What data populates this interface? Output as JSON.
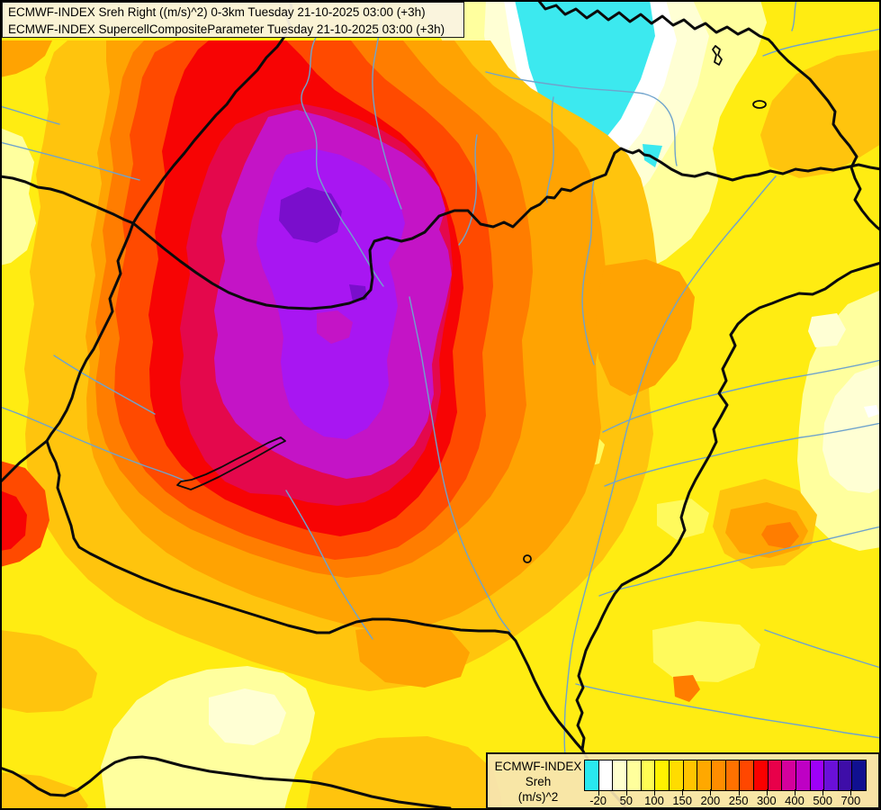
{
  "header": {
    "line1": "ECMWF-INDEX Sreh Right ((m/s)^2) 0-3km Tuesday 21-10-2025 03:00 (+3h)",
    "line2": "ECMWF-INDEX SupercellCompositeParameter Tuesday 21-10-2025 03:00 (+3h)"
  },
  "legend": {
    "title": "ECMWF-INDEX",
    "parameter": "Sreh",
    "units": "(m/s)^2",
    "tick_labels": [
      "-20",
      "50",
      "100",
      "150",
      "200",
      "250",
      "300",
      "400",
      "500",
      "700"
    ],
    "palette": [
      "#29E8EF",
      "#FFFFFF",
      "#FFFFCE",
      "#FFFF9C",
      "#FFFD54",
      "#FFF200",
      "#FFDC00",
      "#FFC400",
      "#FFA800",
      "#FF8D00",
      "#FF7100",
      "#FF4700",
      "#FA0000",
      "#E8004A",
      "#D4009C",
      "#BE00C4",
      "#9E00F8",
      "#6A10D8",
      "#3E0DA8",
      "#101090"
    ]
  },
  "map": {
    "levels": {
      "base": "#FFEC12",
      "gold": "#FFC40D",
      "lightyellow": "#FFFA5C",
      "pale": "#FFFF9E",
      "ivory": "#FFFFD4",
      "white": "#FFFFFF",
      "cyan": "#3CE9EF",
      "orange": "#FFA302",
      "orange2": "#FF7D00",
      "orangered": "#FF4A00",
      "red": "#F70404",
      "crimson": "#E4084C",
      "magenta": "#C414C6",
      "violet": "#A816F2",
      "core": "#7A0ECC"
    },
    "line_colors": {
      "border": "#0b0b0b",
      "river": "#6FA3CC",
      "lake": "#0b0b0b",
      "frame": "#000000"
    }
  }
}
